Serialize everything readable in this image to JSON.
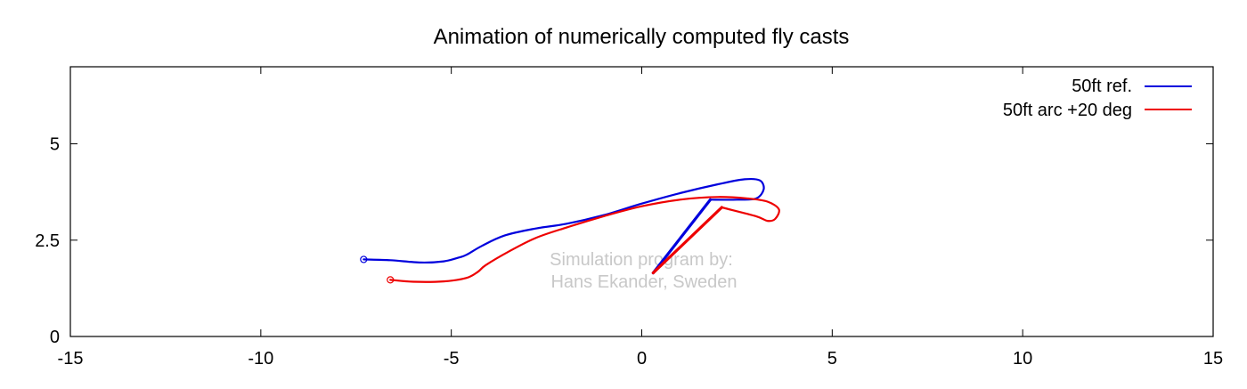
{
  "chart_data": {
    "type": "line",
    "title": "Animation of numerically computed fly casts",
    "xlabel": "",
    "ylabel": "",
    "xlim": [
      -15,
      15
    ],
    "ylim": [
      0,
      7
    ],
    "x_ticks": [
      "-15",
      "-10",
      "-5",
      "0",
      "5",
      "10",
      "15"
    ],
    "y_ticks": [
      "0",
      "2.5",
      "5"
    ],
    "grid": false,
    "legend_position": "top-right",
    "watermark": [
      "Simulation program by:",
      "Hans Ekander, Sweden"
    ],
    "series": [
      {
        "name": "50ft ref.",
        "color": "#0000dd",
        "line_x": [
          -7.3,
          -6.6,
          -5.8,
          -5.2,
          -4.8,
          -4.6,
          -4.2,
          -3.6,
          -2.8,
          -2.0,
          -1.0,
          0.0,
          1.0,
          2.0,
          2.7,
          3.1,
          3.2,
          3.0,
          2.5,
          1.8
        ],
        "line_y": [
          2.0,
          1.98,
          1.92,
          1.95,
          2.05,
          2.12,
          2.35,
          2.62,
          2.8,
          2.92,
          3.15,
          3.45,
          3.72,
          3.95,
          4.08,
          4.05,
          3.82,
          3.58,
          3.55,
          3.55
        ],
        "rod_x": [
          0.3,
          1.8
        ],
        "rod_y": [
          1.65,
          3.55
        ],
        "fly": [
          -7.3,
          2.0
        ]
      },
      {
        "name": "50ft arc +20 deg",
        "color": "#ee0000",
        "line_x": [
          -6.6,
          -6.0,
          -5.2,
          -4.6,
          -4.3,
          -4.1,
          -3.5,
          -2.8,
          -2.0,
          -1.0,
          0.0,
          1.0,
          2.0,
          2.8,
          3.3,
          3.6,
          3.5,
          3.3,
          3.0,
          2.1
        ],
        "line_y": [
          1.47,
          1.42,
          1.43,
          1.52,
          1.68,
          1.85,
          2.2,
          2.55,
          2.82,
          3.12,
          3.38,
          3.55,
          3.62,
          3.58,
          3.5,
          3.3,
          3.05,
          3.0,
          3.12,
          3.35
        ],
        "rod_x": [
          0.3,
          2.1
        ],
        "rod_y": [
          1.65,
          3.35
        ],
        "fly": [
          -6.6,
          1.47
        ]
      }
    ]
  }
}
